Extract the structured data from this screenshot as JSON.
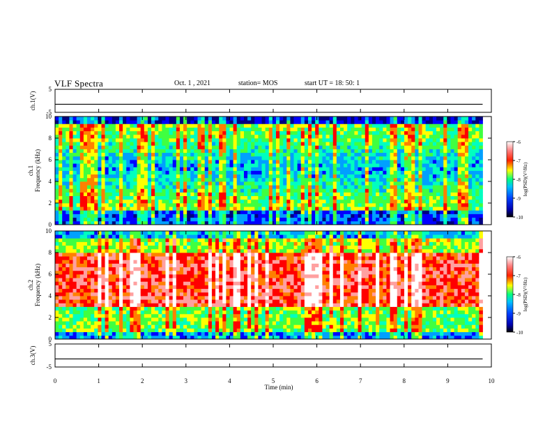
{
  "header": {
    "title": "VLF Spectra",
    "date": "Oct. 1 , 2021",
    "station": "station= MOS",
    "start": "start UT =  18: 50: 1"
  },
  "chart_data": [
    {
      "type": "line",
      "panel": "ch1-waveform",
      "ylabel": "ch.1(V)",
      "ylim": [
        -5,
        5
      ],
      "yticks": [
        5,
        -5
      ],
      "series": [
        {
          "x": [
            0,
            9.8
          ],
          "y": [
            -1.5,
            -1.5
          ]
        }
      ]
    },
    {
      "type": "heatmap",
      "panel": "ch1-spectrogram",
      "ylabel_top": "ch.1",
      "ylabel": "Frequency (kHz)",
      "ylim": [
        0,
        10
      ],
      "yticks": [
        0,
        2,
        4,
        6,
        8,
        10
      ],
      "x_range": [
        0,
        9.8
      ],
      "dominant_level": "-9 to -8 (blue-green) with vertical impulsive bursts"
    },
    {
      "type": "heatmap",
      "panel": "ch2-spectrogram",
      "ylabel_top": "ch.2",
      "ylabel": "Frequency (kHz)",
      "ylim": [
        0,
        10
      ],
      "yticks": [
        0,
        2,
        4,
        6,
        8,
        10
      ],
      "x_range": [
        0,
        9.8
      ],
      "dominant_level": "-7 to -6 (red) around 5-7 kHz"
    },
    {
      "type": "line",
      "panel": "ch3-waveform",
      "ylabel": "ch.3(V)",
      "ylim": [
        -5,
        5
      ],
      "yticks": [
        5,
        -5
      ],
      "series": [
        {
          "x": [
            0,
            9.8
          ],
          "y": [
            -1.5,
            -1.5
          ]
        }
      ]
    }
  ],
  "xaxis": {
    "label": "Time (min)",
    "ticks": [
      "0",
      "1",
      "2",
      "3",
      "4",
      "5",
      "6",
      "7",
      "8",
      "9",
      "10"
    ],
    "range": [
      0,
      10
    ]
  },
  "colorbar": {
    "label": "log(PSD)(V²/Hz)",
    "ticks": [
      "-6",
      "-7",
      "-8",
      "-9",
      "-10"
    ],
    "range": [
      -10,
      -6
    ]
  },
  "colors": {
    "scale": [
      "#000080",
      "#0000ff",
      "#00a0ff",
      "#00ffc0",
      "#40ff40",
      "#ffff00",
      "#ff8000",
      "#ff0000",
      "#ffa0a0",
      "#ffffff"
    ]
  }
}
